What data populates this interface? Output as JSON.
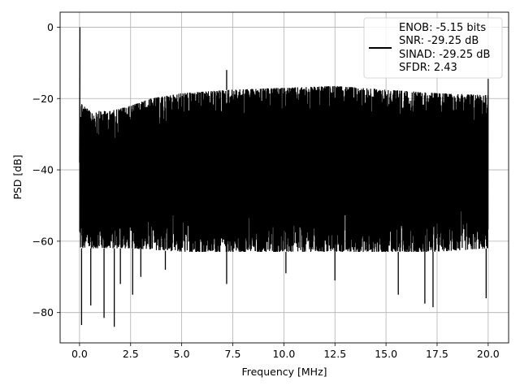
{
  "chart_data": {
    "type": "line",
    "title": "",
    "xlabel": "Frequency [MHz]",
    "ylabel": "PSD [dB]",
    "xlim": [
      -0.95,
      21.0
    ],
    "ylim": [
      -88.5,
      4.2
    ],
    "xticks": [
      0.0,
      2.5,
      5.0,
      7.5,
      10.0,
      12.5,
      15.0,
      17.5,
      20.0
    ],
    "xtick_labels": [
      "0.0",
      "2.5",
      "5.0",
      "7.5",
      "10.0",
      "12.5",
      "15.0",
      "17.5",
      "20.0"
    ],
    "yticks": [
      0,
      -20,
      -40,
      -60,
      -80
    ],
    "ytick_labels": [
      "0",
      "−20",
      "−40",
      "−60",
      "−80"
    ],
    "grid": true,
    "legend_position": "top-right",
    "series": [
      {
        "color": "#000000",
        "legend_lines": [
          "ENOB: -5.15 bits",
          "SNR: -29.25 dB",
          "SINAD: -29.25 dB",
          "SFDR: 2.43"
        ],
        "peak": {
          "x": 0.02,
          "y": 0.0
        },
        "spur": {
          "x": 7.2,
          "y": -12.0
        },
        "right_edge_spike": {
          "x": 20.0,
          "y": -14.5
        },
        "upper_envelope": [
          {
            "x": 0.05,
            "y": -21
          },
          {
            "x": 0.5,
            "y": -23.5
          },
          {
            "x": 1.5,
            "y": -23.5
          },
          {
            "x": 2.5,
            "y": -22
          },
          {
            "x": 3.5,
            "y": -20
          },
          {
            "x": 5.0,
            "y": -18.5
          },
          {
            "x": 7.5,
            "y": -17.5
          },
          {
            "x": 10.0,
            "y": -17
          },
          {
            "x": 12.5,
            "y": -16.5
          },
          {
            "x": 15.0,
            "y": -17.5
          },
          {
            "x": 17.5,
            "y": -18.5
          },
          {
            "x": 20.0,
            "y": -19
          }
        ],
        "lower_envelope": [
          {
            "x": 0.05,
            "y": -62
          },
          {
            "x": 2.5,
            "y": -62
          },
          {
            "x": 5.0,
            "y": -63
          },
          {
            "x": 7.5,
            "y": -63
          },
          {
            "x": 10.0,
            "y": -63
          },
          {
            "x": 12.5,
            "y": -63
          },
          {
            "x": 15.0,
            "y": -63
          },
          {
            "x": 17.5,
            "y": -63
          },
          {
            "x": 20.0,
            "y": -62
          }
        ],
        "deep_dips": [
          {
            "x": 0.1,
            "y": -83.5
          },
          {
            "x": 0.55,
            "y": -78
          },
          {
            "x": 1.2,
            "y": -81.5
          },
          {
            "x": 1.7,
            "y": -84
          },
          {
            "x": 2.0,
            "y": -72
          },
          {
            "x": 2.6,
            "y": -75
          },
          {
            "x": 3.0,
            "y": -70
          },
          {
            "x": 4.2,
            "y": -68
          },
          {
            "x": 7.2,
            "y": -72
          },
          {
            "x": 10.1,
            "y": -69
          },
          {
            "x": 12.5,
            "y": -71
          },
          {
            "x": 15.6,
            "y": -75
          },
          {
            "x": 16.9,
            "y": -77.5
          },
          {
            "x": 17.3,
            "y": -78.5
          },
          {
            "x": 19.9,
            "y": -76
          }
        ]
      }
    ]
  }
}
